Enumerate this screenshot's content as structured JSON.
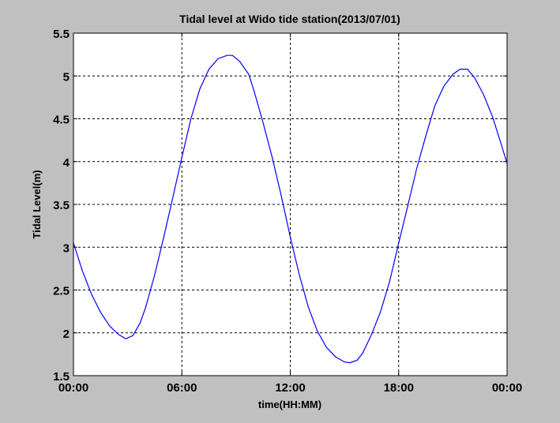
{
  "chart_data": {
    "type": "line",
    "title": "Tidal level at Wido tide station(2013/07/01)",
    "xlabel": "time(HH:MM)",
    "ylabel": "Tidal Level(m)",
    "xlim": [
      0,
      24
    ],
    "ylim": [
      1.5,
      5.5
    ],
    "grid": true,
    "x_ticks": [
      0,
      6,
      12,
      18,
      24
    ],
    "x_tick_labels": [
      "00:00",
      "06:00",
      "12:00",
      "18:00",
      "00:00"
    ],
    "y_ticks": [
      1.5,
      2,
      2.5,
      3,
      3.5,
      4,
      4.5,
      5,
      5.5
    ],
    "y_tick_labels": [
      "1.5",
      "2",
      "2.5",
      "3",
      "3.5",
      "4",
      "4.5",
      "5",
      "5.5"
    ],
    "series": [
      {
        "color": "#0000ff",
        "x": [
          0,
          0.5,
          1,
          1.5,
          2,
          2.5,
          2.9,
          3.3,
          3.7,
          4,
          4.5,
          5,
          5.5,
          6,
          6.5,
          7,
          7.5,
          8,
          8.5,
          8.8,
          9.2,
          9.7,
          10,
          10.5,
          11,
          11.5,
          12,
          12.5,
          13,
          13.5,
          14,
          14.5,
          15,
          15.3,
          15.7,
          16,
          16.5,
          17,
          17.5,
          18,
          18.5,
          19,
          19.5,
          20,
          20.5,
          21,
          21.4,
          21.8,
          22.2,
          22.7,
          23.2,
          23.6,
          24
        ],
        "y": [
          3.05,
          2.72,
          2.45,
          2.24,
          2.08,
          1.98,
          1.93,
          1.97,
          2.12,
          2.3,
          2.68,
          3.12,
          3.58,
          4.05,
          4.5,
          4.85,
          5.08,
          5.2,
          5.24,
          5.24,
          5.17,
          5.02,
          4.82,
          4.45,
          4.05,
          3.6,
          3.12,
          2.68,
          2.3,
          2.02,
          1.83,
          1.72,
          1.66,
          1.65,
          1.68,
          1.76,
          1.98,
          2.25,
          2.6,
          3.05,
          3.48,
          3.92,
          4.3,
          4.65,
          4.88,
          5.02,
          5.08,
          5.08,
          4.98,
          4.78,
          4.52,
          4.25,
          3.98
        ]
      }
    ]
  }
}
